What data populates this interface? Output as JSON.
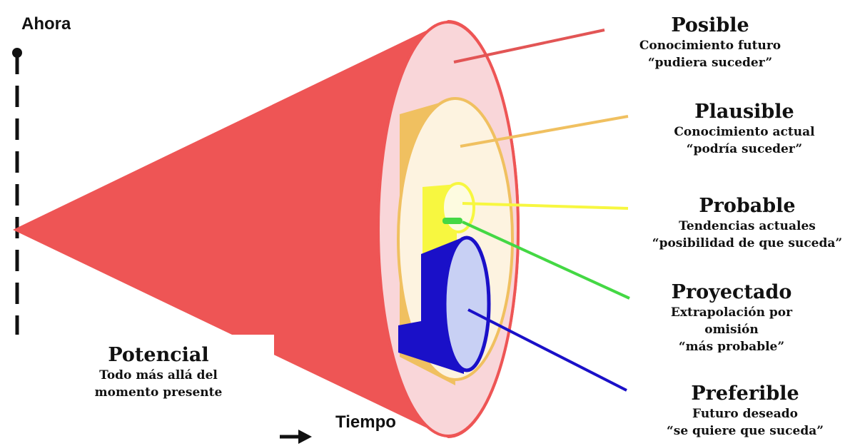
{
  "axis": {
    "top_label": "Ahora",
    "bottom_label": "Tiempo"
  },
  "colors": {
    "cone": "#ee5555",
    "posible_disk": "#f9d6d9",
    "plausible_side": "#f0c060",
    "plausible_disk": "#fdf3e0",
    "probable_side": "#f7f740",
    "probable_disk": "#fdfbe0",
    "proyectado": "#44d844",
    "preferible_side": "#1a10c8",
    "preferible_disk": "#c8d0f4"
  },
  "labels": {
    "posible": {
      "title": "Posible",
      "line1": "Conocimiento futuro",
      "line2": "“pudiera suceder”"
    },
    "plausible": {
      "title": "Plausible",
      "line1": "Conocimiento actual",
      "line2": "“podría suceder”"
    },
    "probable": {
      "title": "Probable",
      "line1": "Tendencias actuales",
      "line2": "“posibilidad de que suceda”"
    },
    "proyectado": {
      "title": "Proyectado",
      "line1": "Extrapolación por",
      "line2": "omisión",
      "line3": "“más probable”"
    },
    "preferible": {
      "title": "Preferible",
      "line1": "Futuro deseado",
      "line2": "“se quiere que suceda”"
    },
    "potencial": {
      "title": "Potencial",
      "line1": "Todo más allá del",
      "line2": "momento presente"
    }
  }
}
